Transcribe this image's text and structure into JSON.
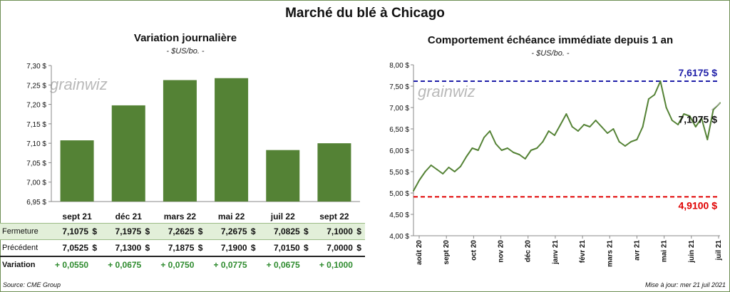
{
  "title": "Marché du blé à Chicago",
  "left": {
    "title": "Variation  journalière",
    "subtitle": "- $US/bo. -",
    "watermark": "grainwiz"
  },
  "right": {
    "title": "Comportement  échéance immédiate depuis 1 an",
    "subtitle": "- $US/bo. -",
    "watermark": "grainwiz",
    "high_label": "7,6175 $",
    "low_label": "4,9100 $",
    "last_label": "7,1075 $"
  },
  "table": {
    "rows": [
      {
        "label": "Fermeture",
        "values": [
          "7,1075",
          "7,1975",
          "7,2625",
          "7,2675",
          "7,0825",
          "7,1000"
        ],
        "unit": "$"
      },
      {
        "label": "Précédent",
        "values": [
          "7,0525",
          "7,1300",
          "7,1875",
          "7,1900",
          "7,0150",
          "7,0000"
        ],
        "unit": "$"
      },
      {
        "label": "Variation",
        "values": [
          "+ 0,0550",
          "+ 0,0675",
          "+ 0,0750",
          "+ 0,0775",
          "+ 0,0675",
          "+ 0,1000"
        ],
        "unit": ""
      }
    ]
  },
  "footer": {
    "source": "Source: CME Group",
    "updated": "Mise à jour: mer 21 juil 2021"
  },
  "colors": {
    "bar": "#548235",
    "line": "#548235",
    "high": "#1f1fa8",
    "low": "#e00000",
    "positive": "#2e8b2e"
  },
  "chart_data": [
    {
      "type": "bar",
      "title": "Variation  journalière",
      "subtitle": "- $US/bo. -",
      "categories": [
        "sept 21",
        "déc 21",
        "mars 22",
        "mai 22",
        "juil 22",
        "sept 22"
      ],
      "values": [
        7.1075,
        7.1975,
        7.2625,
        7.2675,
        7.0825,
        7.1
      ],
      "ylim": [
        6.95,
        7.3
      ],
      "yticks": [
        "6,95 $",
        "7,00 $",
        "7,05 $",
        "7,10 $",
        "7,15 $",
        "7,20 $",
        "7,25 $",
        "7,30 $"
      ],
      "grid": false
    },
    {
      "type": "line",
      "title": "Comportement  échéance immédiate depuis 1 an",
      "subtitle": "- $US/bo. -",
      "x_labels": [
        "août 20",
        "sept 20",
        "oct 20",
        "nov 20",
        "déc 20",
        "janv 21",
        "févr 21",
        "mars 21",
        "avr 21",
        "mai 21",
        "juin 21",
        "juil 21"
      ],
      "x_range": [
        "2020-07-21",
        "2021-07-21"
      ],
      "ylim": [
        4.0,
        8.0
      ],
      "yticks": [
        "4,00 $",
        "4,50 $",
        "5,00 $",
        "5,50 $",
        "6,00 $",
        "6,50 $",
        "7,00 $",
        "7,50 $",
        "8,00 $"
      ],
      "high": 7.6175,
      "low": 4.91,
      "last": 7.1075,
      "series": [
        {
          "points": [
            [
              "2020-07-21",
              5.05
            ],
            [
              "2020-07-28",
              5.3
            ],
            [
              "2020-08-04",
              5.5
            ],
            [
              "2020-08-11",
              5.65
            ],
            [
              "2020-08-18",
              5.55
            ],
            [
              "2020-08-25",
              5.45
            ],
            [
              "2020-09-01",
              5.6
            ],
            [
              "2020-09-08",
              5.5
            ],
            [
              "2020-09-15",
              5.62
            ],
            [
              "2020-09-22",
              5.85
            ],
            [
              "2020-09-29",
              6.05
            ],
            [
              "2020-10-06",
              6.0
            ],
            [
              "2020-10-13",
              6.3
            ],
            [
              "2020-10-20",
              6.45
            ],
            [
              "2020-10-27",
              6.15
            ],
            [
              "2020-11-03",
              6.0
            ],
            [
              "2020-11-10",
              6.05
            ],
            [
              "2020-11-17",
              5.95
            ],
            [
              "2020-11-24",
              5.9
            ],
            [
              "2020-12-01",
              5.8
            ],
            [
              "2020-12-08",
              6.0
            ],
            [
              "2020-12-15",
              6.05
            ],
            [
              "2020-12-22",
              6.2
            ],
            [
              "2020-12-29",
              6.45
            ],
            [
              "2021-01-05",
              6.35
            ],
            [
              "2021-01-12",
              6.6
            ],
            [
              "2021-01-19",
              6.85
            ],
            [
              "2021-01-26",
              6.55
            ],
            [
              "2021-02-02",
              6.45
            ],
            [
              "2021-02-09",
              6.6
            ],
            [
              "2021-02-16",
              6.55
            ],
            [
              "2021-02-23",
              6.7
            ],
            [
              "2021-03-02",
              6.55
            ],
            [
              "2021-03-09",
              6.4
            ],
            [
              "2021-03-16",
              6.5
            ],
            [
              "2021-03-23",
              6.2
            ],
            [
              "2021-03-30",
              6.1
            ],
            [
              "2021-04-06",
              6.2
            ],
            [
              "2021-04-13",
              6.25
            ],
            [
              "2021-04-20",
              6.55
            ],
            [
              "2021-04-27",
              7.2
            ],
            [
              "2021-05-04",
              7.3
            ],
            [
              "2021-05-11",
              7.6175
            ],
            [
              "2021-05-18",
              7.0
            ],
            [
              "2021-05-25",
              6.7
            ],
            [
              "2021-06-01",
              6.6
            ],
            [
              "2021-06-08",
              6.85
            ],
            [
              "2021-06-15",
              6.8
            ],
            [
              "2021-06-22",
              6.55
            ],
            [
              "2021-06-29",
              6.75
            ],
            [
              "2021-07-06",
              6.25
            ],
            [
              "2021-07-13",
              6.95
            ],
            [
              "2021-07-21",
              7.1075
            ]
          ]
        }
      ]
    }
  ]
}
